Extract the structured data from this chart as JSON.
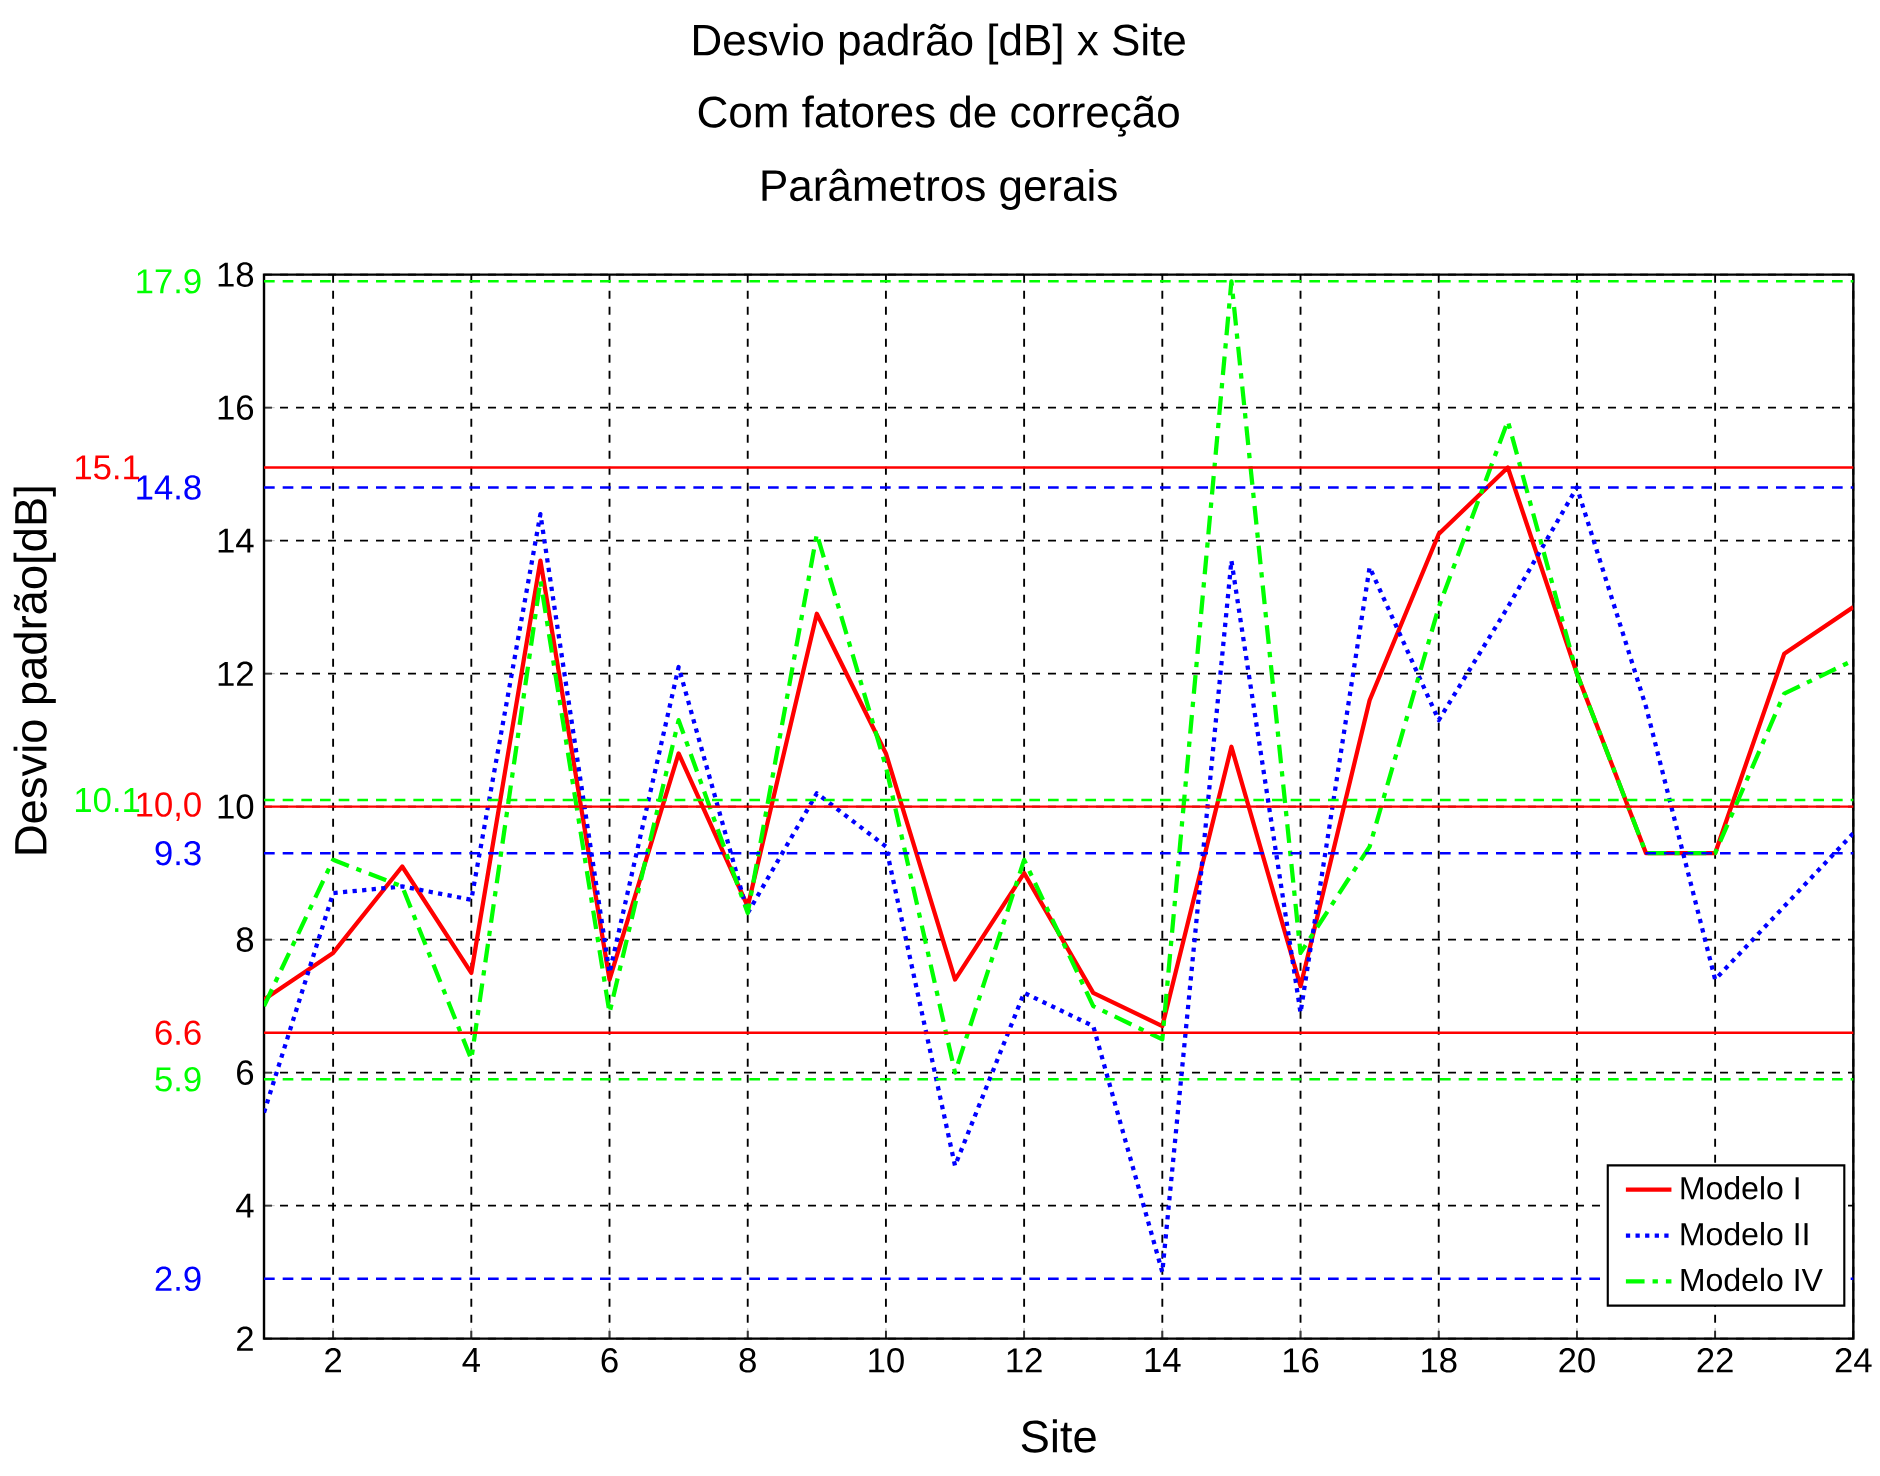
{
  "chart_data": {
    "type": "line",
    "title": "Desvio padrão [dB] x Site",
    "subtitle": "Com fatores de correção",
    "annotations": [
      "Parâmetros gerais"
    ],
    "xlabel": "Site",
    "ylabel": "Desvio padrão[dB]",
    "x": [
      1,
      2,
      3,
      4,
      5,
      6,
      7,
      8,
      9,
      10,
      11,
      12,
      13,
      14,
      15,
      16,
      17,
      18,
      19,
      20,
      21,
      22,
      23,
      24
    ],
    "xlim": [
      1,
      24
    ],
    "xticks": [
      2,
      4,
      6,
      8,
      10,
      12,
      14,
      16,
      18,
      20,
      22,
      24
    ],
    "ylim": [
      2,
      18
    ],
    "yticks": [
      2,
      4,
      6,
      8,
      10,
      12,
      14,
      16,
      18
    ],
    "grid": true,
    "legend": "bottom right",
    "series": [
      {
        "name": "Modelo I",
        "color": "#ff0000",
        "line_style": "solid",
        "values": [
          7.1,
          7.8,
          9.1,
          7.5,
          13.7,
          7.4,
          10.8,
          8.5,
          12.9,
          10.8,
          7.4,
          9.0,
          7.2,
          6.7,
          10.9,
          7.3,
          11.6,
          14.1,
          15.1,
          12.0,
          9.3,
          9.3,
          12.3,
          13.0
        ]
      },
      {
        "name": "Modelo II",
        "color": "#0000ff",
        "line_style": "dotted",
        "values": [
          5.4,
          8.7,
          8.8,
          8.6,
          14.4,
          7.5,
          12.1,
          8.4,
          10.2,
          9.4,
          4.6,
          7.2,
          6.7,
          3.0,
          13.7,
          6.9,
          13.6,
          11.3,
          13.0,
          14.8,
          11.5,
          7.4,
          8.5,
          9.6
        ]
      },
      {
        "name": "Modelo IV",
        "color": "#00ff00",
        "line_style": "dashdot",
        "values": [
          7.0,
          9.2,
          8.8,
          6.2,
          13.4,
          6.9,
          11.3,
          8.4,
          14.1,
          10.6,
          6.0,
          9.2,
          7.0,
          6.5,
          17.9,
          7.8,
          9.4,
          13.0,
          15.8,
          12.0,
          9.3,
          9.3,
          11.7,
          12.2
        ]
      }
    ],
    "ref_lines": [
      {
        "axis": "y",
        "value": 17.9,
        "label": "17.9",
        "color": "#00ff00",
        "line_style": "dashed"
      },
      {
        "axis": "y",
        "value": 15.1,
        "label": "15.1",
        "color": "#ff0000",
        "line_style": "solid"
      },
      {
        "axis": "y",
        "value": 14.8,
        "label": "14.8",
        "color": "#0000ff",
        "line_style": "dashed"
      },
      {
        "axis": "y",
        "value": 10.1,
        "label": "10.1",
        "color": "#00ff00",
        "line_style": "dashed"
      },
      {
        "axis": "y",
        "value": 10.0,
        "label": "10,0",
        "color": "#ff0000",
        "line_style": "solid"
      },
      {
        "axis": "y",
        "value": 9.3,
        "label": "9.3",
        "color": "#0000ff",
        "line_style": "dashed"
      },
      {
        "axis": "y",
        "value": 6.6,
        "label": "6.6",
        "color": "#ff0000",
        "line_style": "solid"
      },
      {
        "axis": "y",
        "value": 5.9,
        "label": "5.9",
        "color": "#00ff00",
        "line_style": "dashed"
      },
      {
        "axis": "y",
        "value": 2.9,
        "label": "2.9",
        "color": "#0000ff",
        "line_style": "dashed"
      }
    ]
  }
}
